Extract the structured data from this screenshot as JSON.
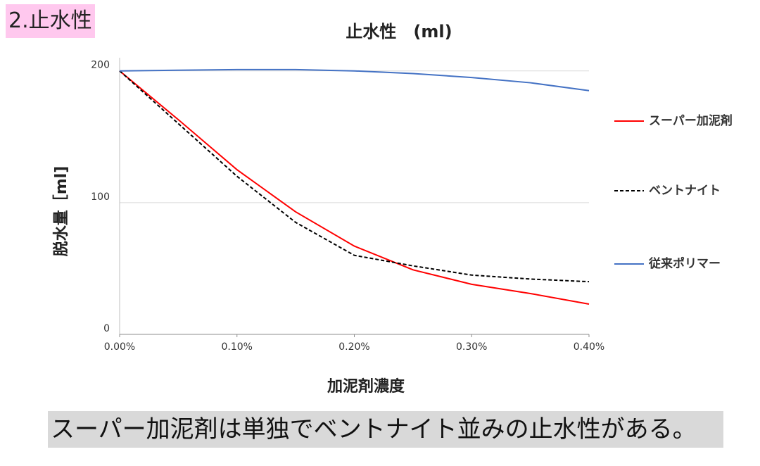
{
  "heading": "2.止水性",
  "note": "スーパー加泥剤は単独でベントナイト並みの止水性がある。",
  "chart_data": {
    "type": "line",
    "title": "止水性　(ml)",
    "x_label": "加泥剤濃度",
    "y_label": "脱水量［ml]",
    "x": [
      0,
      0.05,
      0.1,
      0.15,
      0.2,
      0.25,
      0.3,
      0.35,
      0.4
    ],
    "xlim": [
      0,
      0.4
    ],
    "xticks": [
      {
        "value": 0,
        "label": "0.00%"
      },
      {
        "value": 0.1,
        "label": "0.10%"
      },
      {
        "value": 0.2,
        "label": "0.20%"
      },
      {
        "value": 0.3,
        "label": "0.30%"
      },
      {
        "value": 0.4,
        "label": "0.40%"
      }
    ],
    "ylim": [
      0,
      210
    ],
    "yticks": [
      0,
      100,
      200
    ],
    "grid": true,
    "legend": "right",
    "series": [
      {
        "name": "スーパー加泥剤",
        "color": "#ff0000",
        "line_style": "solid",
        "values": [
          200,
          163,
          125,
          93,
          67,
          49,
          38,
          31,
          23
        ]
      },
      {
        "name": "ベントナイト",
        "color": "#000000",
        "line_style": "dashed",
        "values": [
          200,
          160,
          120,
          85,
          60,
          52,
          45,
          42,
          40
        ]
      },
      {
        "name": "従来ポリマー",
        "color": "#4472c4",
        "line_style": "solid",
        "values": [
          200,
          200.5,
          201,
          201,
          200,
          198,
          195,
          191,
          185
        ]
      }
    ]
  }
}
